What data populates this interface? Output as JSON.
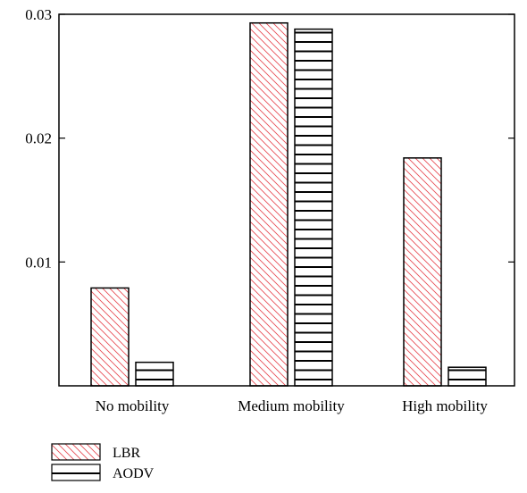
{
  "chart_data": {
    "type": "bar",
    "title": "",
    "xlabel": "",
    "ylabel": "",
    "categories": [
      "No mobility",
      "Medium mobility",
      "High mobility"
    ],
    "series": [
      {
        "name": "LBR",
        "values": [
          0.0079,
          0.0293,
          0.0184
        ],
        "color": "#e8474f",
        "pattern": "diagonal-hatch"
      },
      {
        "name": "AODV",
        "values": [
          0.0019,
          0.0288,
          0.0015
        ],
        "color": "#000000",
        "pattern": "horizontal-lines"
      }
    ],
    "ylim": [
      0,
      0.03
    ],
    "yticks": [
      {
        "value": 0.01,
        "label": "0.01"
      },
      {
        "value": 0.02,
        "label": "0.02"
      },
      {
        "value": 0.03,
        "label": "0.03"
      }
    ],
    "grid": false,
    "legend_position": "bottom-left"
  }
}
